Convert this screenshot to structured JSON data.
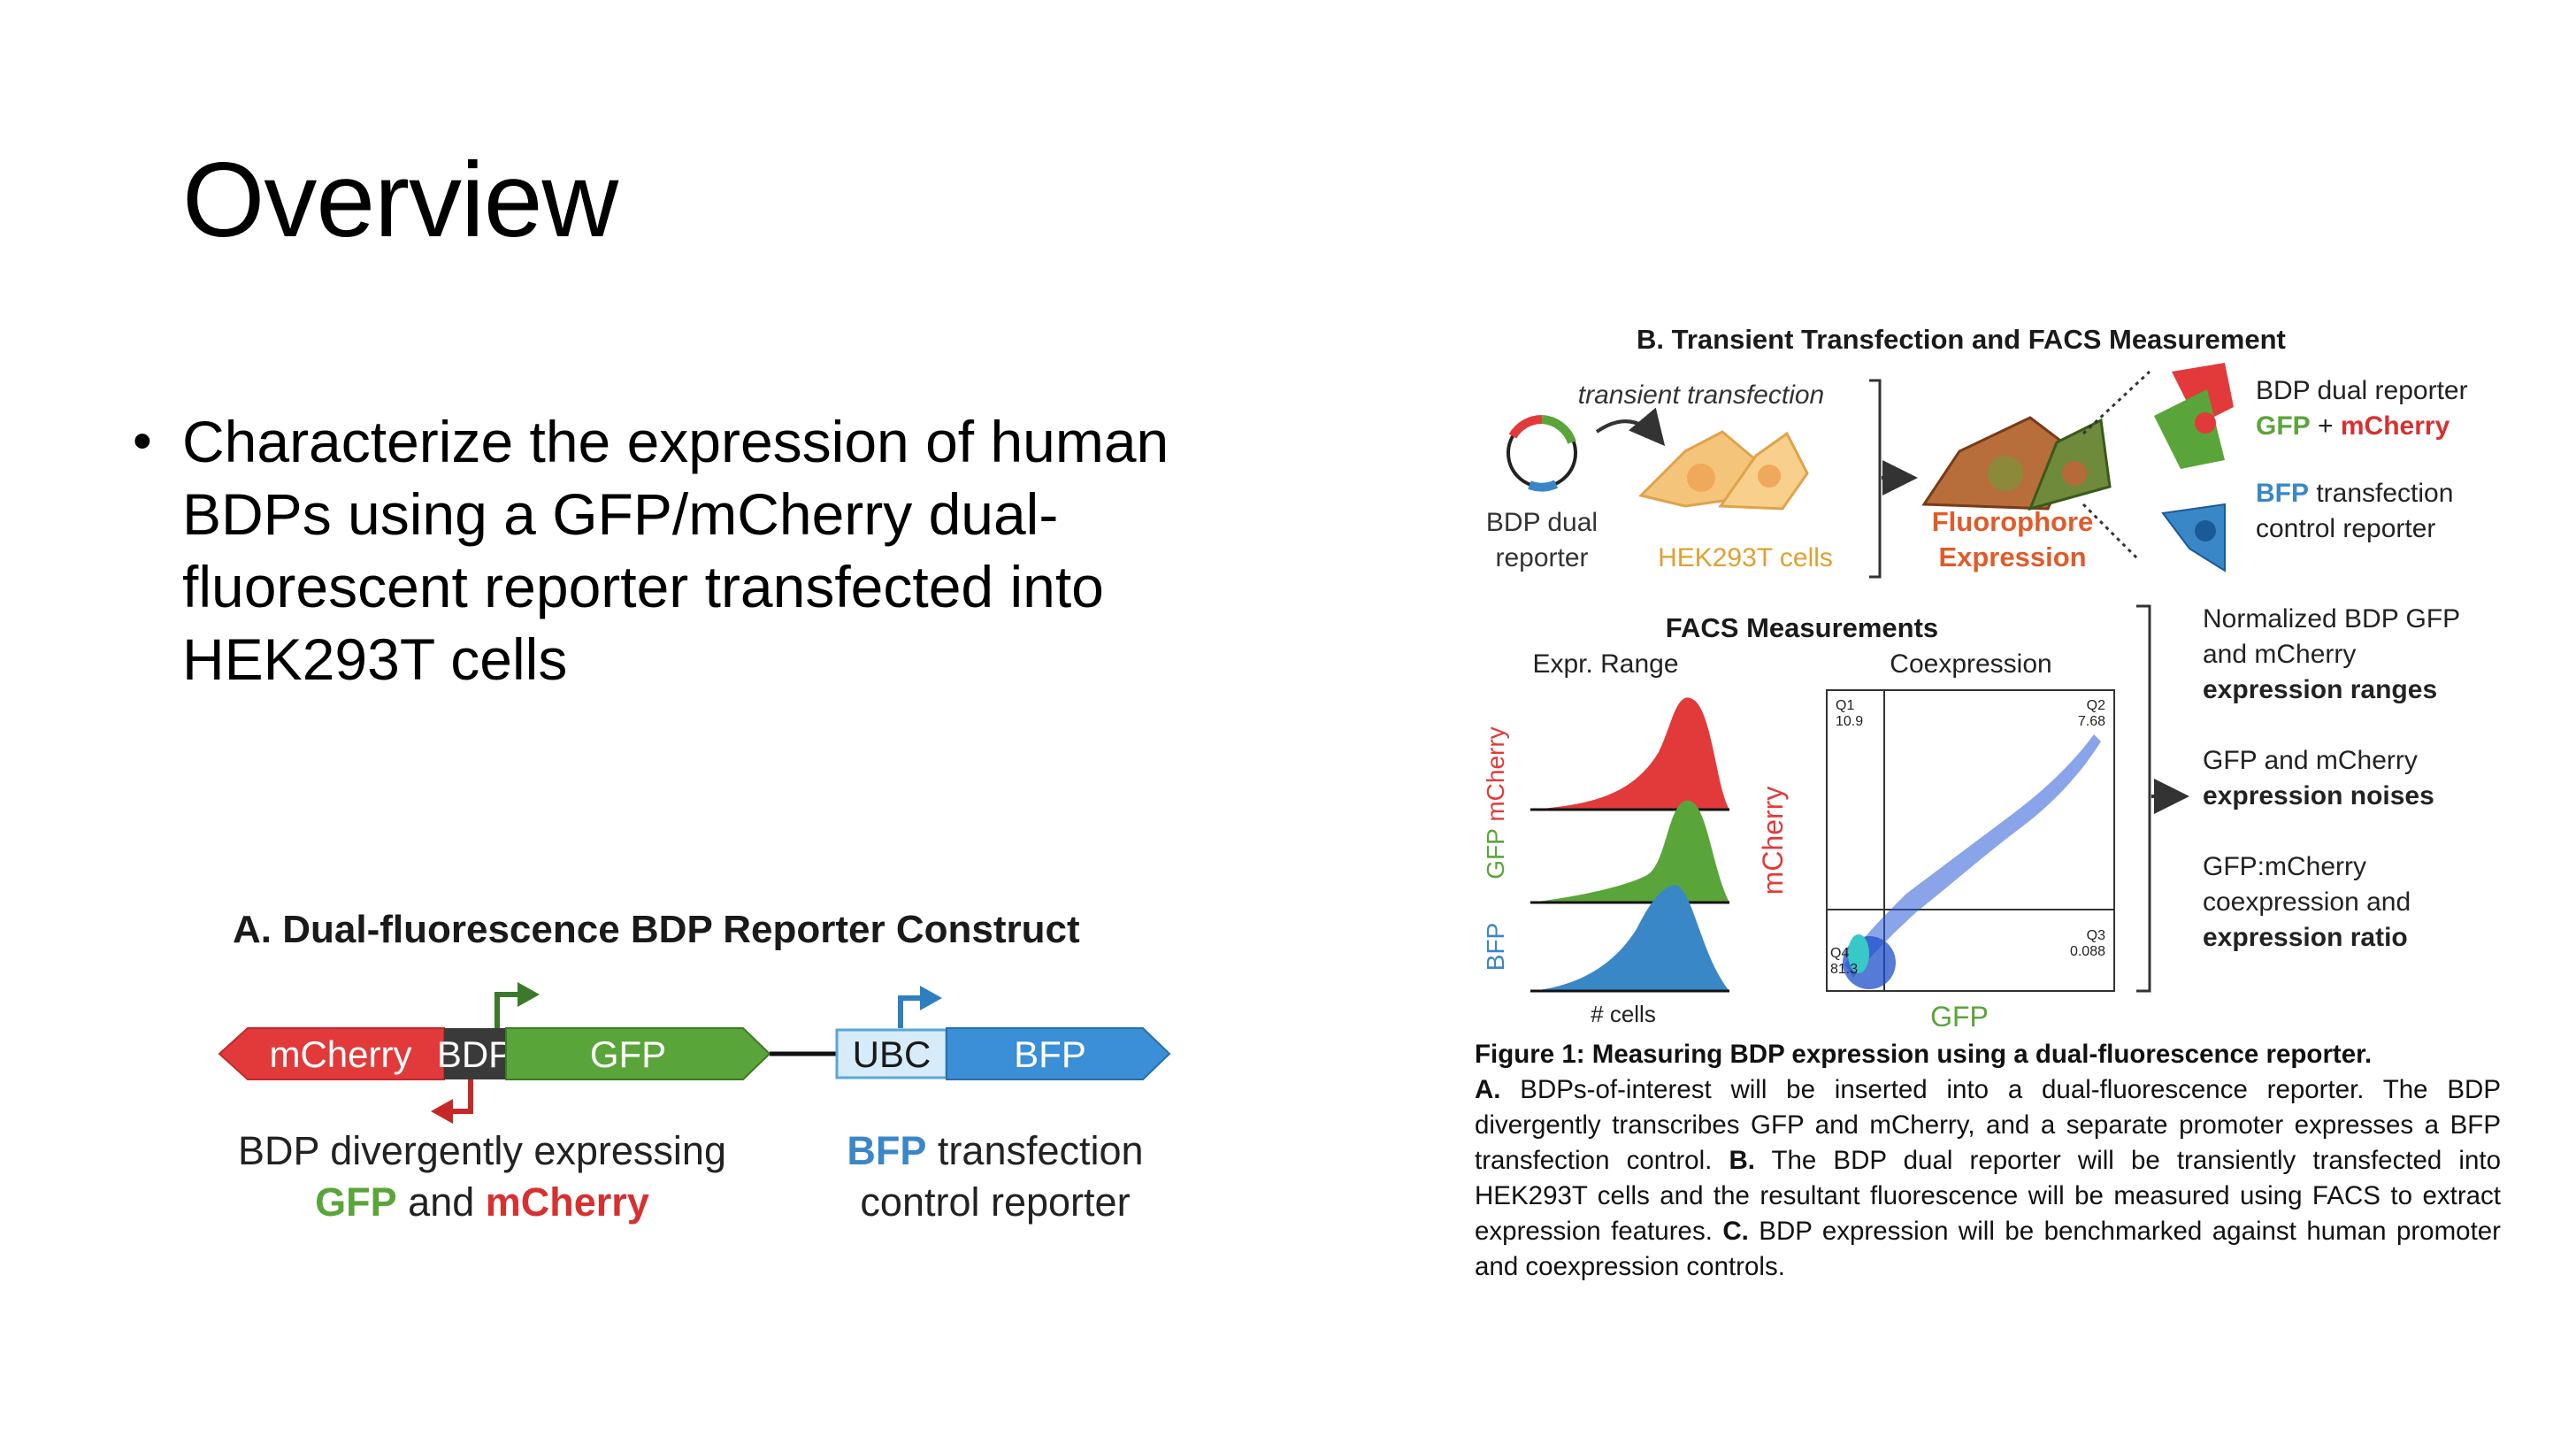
{
  "slide": {
    "title": "Overview",
    "bullets": [
      "Characterize the expression of human BDPs using a GFP/mCherry dual-fluorescent reporter transfected into HEK293T cells"
    ]
  },
  "panel_a": {
    "title": "A. Dual-fluorescence  BDP Reporter Construct",
    "segments": {
      "mcherry": "mCherry",
      "bdp": "BDP",
      "gfp": "GFP",
      "ubc": "UBC",
      "bfp": "BFP"
    },
    "caption_left": {
      "line1": "BDP divergently expressing",
      "gfp": "GFP",
      "and": " and ",
      "mcherry": "mCherry"
    },
    "caption_right": {
      "bfp": "BFP",
      "line1_rest": " transfection",
      "line2": "control reporter"
    }
  },
  "panel_b": {
    "title": "B. Transient Transfection and FACS Measurement",
    "transient_label": "transient transfection",
    "bdp_reporter_label": [
      "BDP dual",
      "reporter"
    ],
    "hek_label": "HEK293T cells",
    "fluorophore_label": [
      "Fluorophore",
      "Expression"
    ],
    "right_reporter": {
      "line1": "BDP dual reporter",
      "gfp": "GFP",
      "plus": " + ",
      "mcherry": "mCherry"
    },
    "right_bfp": {
      "bfp": "BFP",
      "rest": " transfection",
      "line2": "control reporter"
    },
    "facs_title": "FACS Measurements",
    "expr_range": "Expr. Range",
    "coexpression": "Coexpression",
    "hist_labels": [
      "mCherry",
      "GFP",
      "BFP"
    ],
    "hist_xlabel": "# cells",
    "scatter_ylabel": "mCherry",
    "scatter_xlabel": "GFP",
    "quadrants": {
      "q1": "Q1",
      "q1v": "10.9",
      "q2": "Q2",
      "q2v": "7.68",
      "q3": "Q3",
      "q3v": "0.088",
      "q4": "Q4",
      "q4v": "81.3"
    },
    "features": [
      {
        "line1": "Normalized BDP GFP",
        "line2": "and mCherry",
        "bold": "expression ranges"
      },
      {
        "line1": "GFP and mCherry",
        "line2": "",
        "bold": "expression noises"
      },
      {
        "line1": "GFP:mCherry",
        "line2": "coexpression and",
        "bold": "expression ratio"
      }
    ],
    "colors": {
      "mcherry": "#e23a3a",
      "gfp": "#5aa53a",
      "bfp": "#3a87c8",
      "hek": "#f4c47a",
      "ubc": "#d6ecfa",
      "bdp": "#3a3a3a"
    }
  },
  "caption": {
    "figure_title": "Figure 1: Measuring BDP expression using a dual-fluorescence reporter.",
    "a_label": "A.",
    "a_text": " BDPs-of-interest will be inserted into a dual-fluorescence reporter. The BDP divergently transcribes GFP and mCherry, and a separate promoter expresses a BFP transfection control. ",
    "b_label": "B.",
    "b_text": " The BDP dual reporter will be transiently transfected into HEK293T cells and the resultant fluorescence will be measured using FACS to extract expression features. ",
    "c_label": "C.",
    "c_text": " BDP expression will be benchmarked against human promoter and coexpression controls."
  }
}
